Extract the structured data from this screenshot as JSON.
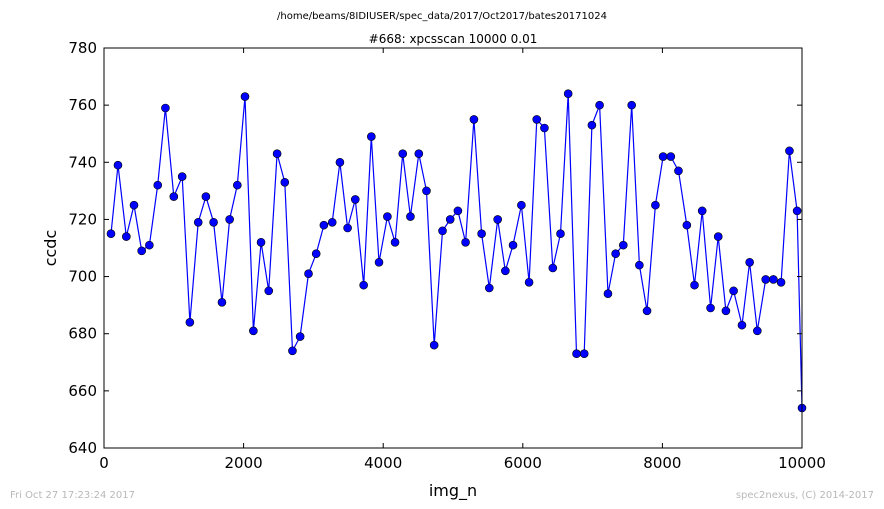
{
  "header": {
    "path": "/home/beams/8IDIUSER/spec_data/2017/Oct2017/bates20171024"
  },
  "footer": {
    "timestamp": "Fri Oct 27 17:23:24 2017",
    "credit": "spec2nexus, (C) 2014-2017"
  },
  "colors": {
    "series": "#0000ff",
    "marker_edge": "#000000",
    "frame": "#000000"
  },
  "chart_data": {
    "type": "line",
    "title": "#668: xpcsscan 10000 0.01",
    "xlabel": "img_n",
    "ylabel": "ccdc",
    "xlim": [
      0,
      10000
    ],
    "ylim": [
      640,
      780
    ],
    "xticks": [
      0,
      2000,
      4000,
      6000,
      8000,
      10000
    ],
    "yticks": [
      640,
      660,
      680,
      700,
      720,
      740,
      760,
      780
    ],
    "grid": false,
    "markers": "circle",
    "series": [
      {
        "x": [
          100,
          200,
          320,
          430,
          540,
          650,
          770,
          880,
          1000,
          1120,
          1230,
          1350,
          1460,
          1570,
          1690,
          1800,
          1910,
          2020,
          2140,
          2250,
          2360,
          2480,
          2590,
          2700,
          2810,
          2930,
          3040,
          3150,
          3270,
          3380,
          3490,
          3600,
          3720,
          3830,
          3940,
          4060,
          4170,
          4280,
          4390,
          4510,
          4620,
          4730,
          4850,
          4960,
          5070,
          5180,
          5300,
          5410,
          5520,
          5640,
          5750,
          5860,
          5980,
          6090,
          6200,
          6310,
          6430,
          6540,
          6650,
          6770,
          6880,
          6990,
          7100,
          7220,
          7330,
          7440,
          7560,
          7670,
          7780,
          7900,
          8010,
          8120,
          8230,
          8350,
          8460,
          8570,
          8690,
          8800,
          8910,
          9020,
          9140,
          9250,
          9360,
          9480,
          9590,
          9700,
          9820,
          9930,
          10000
        ],
        "y": [
          715,
          739,
          714,
          725,
          709,
          711,
          732,
          759,
          728,
          735,
          684,
          719,
          728,
          719,
          691,
          720,
          732,
          763,
          681,
          712,
          695,
          743,
          733,
          674,
          679,
          701,
          708,
          718,
          719,
          740,
          717,
          727,
          697,
          749,
          705,
          721,
          712,
          743,
          721,
          743,
          730,
          676,
          716,
          720,
          723,
          712,
          755,
          715,
          696,
          720,
          702,
          711,
          725,
          698,
          755,
          752,
          703,
          715,
          764,
          673,
          673,
          753,
          760,
          694,
          708,
          711,
          760,
          704,
          688,
          725,
          742,
          742,
          737,
          718,
          697,
          723,
          689,
          714,
          688,
          695,
          683,
          705,
          681,
          699,
          699,
          698,
          744,
          723,
          654
        ]
      }
    ]
  }
}
